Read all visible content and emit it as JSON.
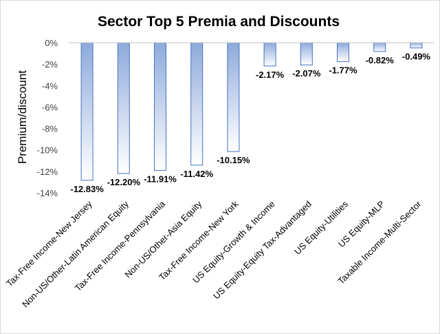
{
  "chart_data": {
    "type": "bar",
    "title": "Sector Top 5 Premia and Discounts",
    "xlabel": "",
    "ylabel": "Premium/discount",
    "ylim": [
      -14,
      0
    ],
    "yticks": [
      "0%",
      "-2%",
      "-4%",
      "-6%",
      "-8%",
      "-10%",
      "-12%",
      "-14%"
    ],
    "categories": [
      "Tax-Free Income-New Jersey",
      "Non-US/Other-Latin American Equity",
      "Tax-Free Income-Pennsylvania",
      "Non-US/Other-Asia Equity",
      "Tax-Free Income-New York",
      "US Equity-Growth & Income",
      "US Equity-Equity Tax-Advantaged",
      "US Equity-Utilities",
      "US Equity-MLP",
      "Taxable Income-Multi-Sector"
    ],
    "values": [
      -12.83,
      -12.2,
      -11.91,
      -11.42,
      -10.15,
      -2.17,
      -2.07,
      -1.77,
      -0.82,
      -0.49
    ],
    "data_labels": [
      "-12.83%",
      "-12.20%",
      "-11.91%",
      "-11.42%",
      "-10.15%",
      "-2.17%",
      "-2.07%",
      "-1.77%",
      "-0.82%",
      "-0.49%"
    ],
    "grid": false,
    "legend": "none",
    "colors": {
      "bar_top": "#8eaadb",
      "bar_bottom": "#ffffff",
      "bar_border": "#4472c4"
    }
  }
}
